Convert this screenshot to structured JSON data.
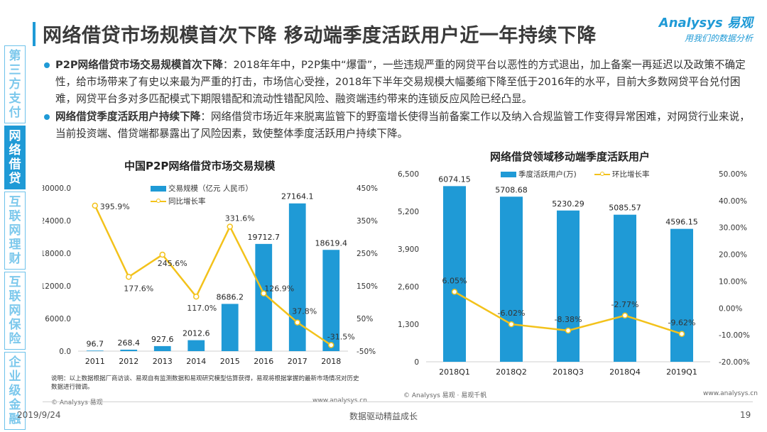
{
  "header": {
    "title": "网络借贷市场规模首次下降  移动端季度活跃用户近一年持续下降",
    "brand": "Analysys 易观",
    "slogan": "用我们的数据分析"
  },
  "sidebar": {
    "items": [
      {
        "label": "第三方支付",
        "active": false
      },
      {
        "label": "网络借贷",
        "active": true
      },
      {
        "label": "互联网理财",
        "active": false
      },
      {
        "label": "互联网保险",
        "active": false
      },
      {
        "label": "企业级金融",
        "active": false
      }
    ]
  },
  "bullets": [
    {
      "heading": "P2P网络借贷市场交易规模首次下降",
      "text": "：2018年年中，P2P集中“爆雷”，一些违规严重的网贷平台以恶性的方式退出，加上备案一再延迟以及政策不确定性，给市场带来了有史以来最为严重的打击，市场信心受挫，2018年下半年交易规模大幅萎缩下降至低于2016年的水平，目前大多数网贷平台兑付困难，网贷平台多对多匹配模式下期限错配和流动性错配风险、融资端违约带来的连锁反应风险已经凸显。"
    },
    {
      "heading": "网络借贷季度活跃用户持续下降",
      "text": "：网络借贷市场近年来脱离监管下的野蛮增长使得当前备案工作以及纳入合规监管工作变得异常困难，对网贷行业来说，当前投资端、借贷端都暴露出了风险因素，致使整体季度活跃用户持续下降。"
    }
  ],
  "chart_data": [
    {
      "type": "bar",
      "title": "中国P2P网络借贷市场交易规模",
      "categories": [
        "2011",
        "2012",
        "2013",
        "2014",
        "2015",
        "2016",
        "2017",
        "2018"
      ],
      "series": [
        {
          "name": "交易规模（亿元 人民币）",
          "type": "bar",
          "axis": "left",
          "values": [
            96.7,
            268.4,
            927.6,
            2012.6,
            8686.2,
            19712.7,
            27164.1,
            18619.4
          ],
          "labels": [
            "96.7",
            "268.4",
            "927.6",
            "2012.6",
            "8686.2",
            "19712.7",
            "27164.1",
            "18619.4"
          ]
        },
        {
          "name": "同比增长率",
          "type": "line",
          "axis": "right",
          "values": [
            395.9,
            177.6,
            245.6,
            117.0,
            331.6,
            126.9,
            37.8,
            -31.5
          ],
          "labels": [
            "395.9%",
            "177.6%",
            "245.6%",
            "117.0%",
            "331.6%",
            "126.9%",
            "37.8%",
            "-31.5%"
          ]
        }
      ],
      "y_left": {
        "ticks": [
          "0.0",
          "6000.0",
          "12000.0",
          "18000.0",
          "24000.0",
          "30000.0"
        ],
        "range": [
          0,
          30000
        ]
      },
      "y_right": {
        "ticks": [
          "-50%",
          "50%",
          "150%",
          "250%",
          "350%",
          "450%"
        ],
        "range": [
          -50,
          450
        ]
      },
      "legend": "top-right",
      "colors": {
        "bar": "#1f9ad6",
        "line": "#f3c21b"
      }
    },
    {
      "type": "bar",
      "title": "网络借贷领域移动端季度活跃用户",
      "categories": [
        "2018Q1",
        "2018Q2",
        "2018Q3",
        "2018Q4",
        "2019Q1"
      ],
      "series": [
        {
          "name": "季度活跃用户(万)",
          "type": "bar",
          "axis": "left",
          "values": [
            6074.15,
            5708.68,
            5230.29,
            5085.57,
            4596.15
          ],
          "labels": [
            "6074.15",
            "5708.68",
            "5230.29",
            "5085.57",
            "4596.15"
          ]
        },
        {
          "name": "环比增长率",
          "type": "line",
          "axis": "right",
          "values": [
            6.05,
            -6.02,
            -8.38,
            -2.77,
            -9.62
          ],
          "labels": [
            "6.05%",
            "-6.02%",
            "-8.38%",
            "-2.77%",
            "-9.62%"
          ]
        }
      ],
      "y_left": {
        "ticks": [
          "0",
          "1,300",
          "2,600",
          "3,900",
          "5,200",
          "6,500"
        ],
        "range": [
          0,
          6500
        ]
      },
      "y_right": {
        "ticks": [
          "-20.00%",
          "-10.00%",
          "0.00%",
          "10.00%",
          "20.00%",
          "30.00%",
          "40.00%",
          "50.00%"
        ],
        "range": [
          -20,
          50
        ]
      },
      "legend": "top-center",
      "colors": {
        "bar": "#1f9ad6",
        "line": "#f3c21b"
      }
    }
  ],
  "note": "说明：以上数据根据厂商访谈、易观自有监测数据和易观研究模型估算获得，易观将根据掌握的最新市场情况对历史数据进行微调。",
  "sources": {
    "left_copyright": "© Analysys 易观",
    "left_url": "www.analysys.cn",
    "right_copyright": "© Analysys 易观 · 易观千帆",
    "right_url": "www.analysys.cn"
  },
  "footer": {
    "date": "2019/9/24",
    "center": "数据驱动精益成长",
    "page": "19"
  }
}
